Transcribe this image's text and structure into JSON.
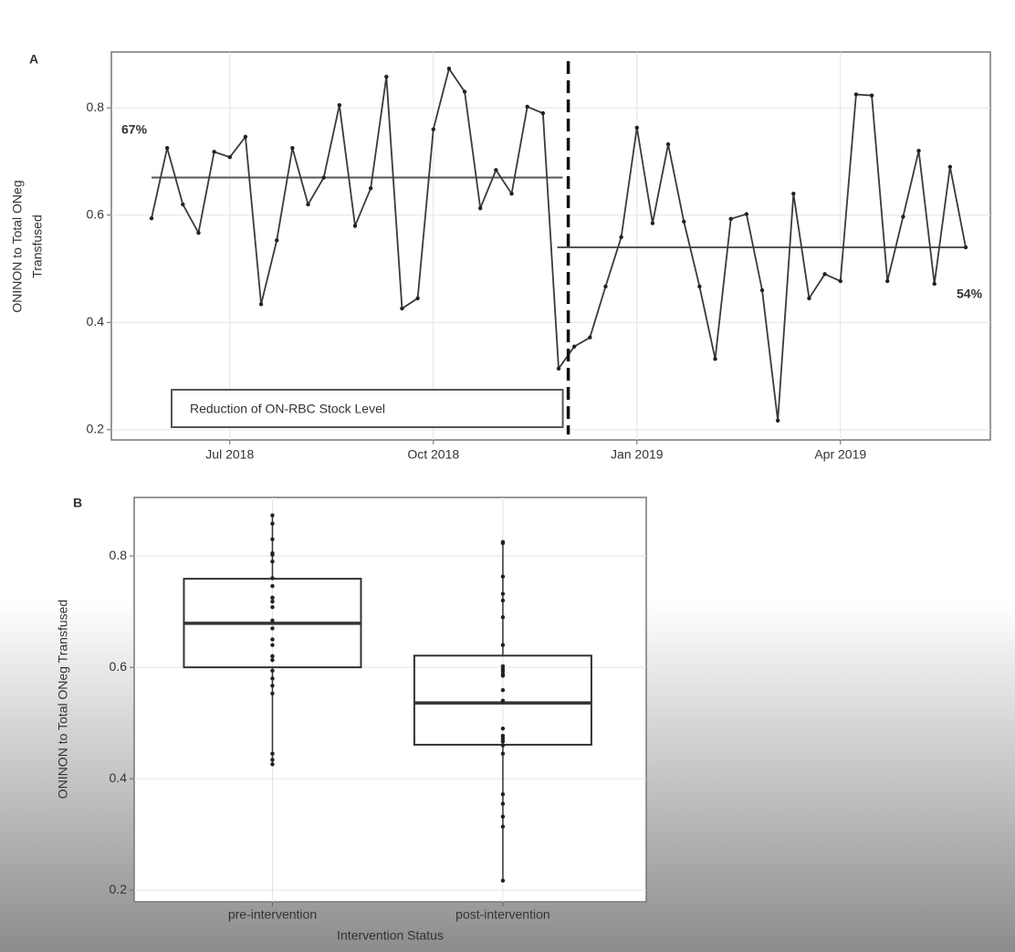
{
  "chart_data": [
    {
      "type": "line",
      "title": "A",
      "ylabel": [
        "ONINON to Total ONeg",
        "Transfused"
      ],
      "x": [
        "2018-05",
        "2018-06",
        "2018-06",
        "2018-06",
        "2018-06",
        "2018-07",
        "2018-07",
        "2018-07",
        "2018-07",
        "2018-07",
        "2018-08",
        "2018-08",
        "2018-08",
        "2018-08",
        "2018-09",
        "2018-09",
        "2018-09",
        "2018-09",
        "2018-10",
        "2018-10",
        "2018-10",
        "2018-10",
        "2018-10",
        "2018-11",
        "2018-11",
        "2018-11",
        "2018-11",
        "2018-12",
        "2018-12",
        "2018-12",
        "2018-12",
        "2019-01",
        "2019-01",
        "2019-01",
        "2019-01",
        "2019-01",
        "2019-02",
        "2019-02",
        "2019-02",
        "2019-02",
        "2019-03",
        "2019-03",
        "2019-03",
        "2019-03",
        "2019-04",
        "2019-04",
        "2019-04",
        "2019-04",
        "2019-04",
        "2019-05",
        "2019-05",
        "2019-05",
        "2019-05"
      ],
      "values": [
        0.594,
        0.725,
        0.62,
        0.567,
        0.718,
        0.708,
        0.746,
        0.434,
        0.553,
        0.725,
        0.62,
        0.67,
        0.805,
        0.58,
        0.65,
        0.858,
        0.426,
        0.445,
        0.76,
        0.873,
        0.83,
        0.613,
        0.684,
        0.64,
        0.802,
        0.79,
        0.314,
        0.355,
        0.372,
        0.467,
        0.559,
        0.763,
        0.585,
        0.732,
        0.588,
        0.467,
        0.332,
        0.593,
        0.602,
        0.46,
        0.217,
        0.64,
        0.445,
        0.49,
        0.477,
        0.825,
        0.823,
        0.477,
        0.597,
        0.72,
        0.472,
        0.69,
        0.54
      ],
      "color": "#3a3a3a",
      "xticks": [
        {
          "value": "2018-07",
          "label": "Jul 2018"
        },
        {
          "value": "2018-10",
          "label": "Oct 2018"
        },
        {
          "value": "2019-01",
          "label": "Jan 2019"
        },
        {
          "value": "2019-04",
          "label": "Apr 2019"
        }
      ],
      "ylim": [
        0.181,
        0.904
      ],
      "yticks": [
        0.2,
        0.4,
        0.6,
        0.8
      ],
      "grid": true,
      "intervention": {
        "x": "2018-12",
        "label": "Reduction of ON-RBC Stock Level"
      },
      "segments": [
        {
          "label": "67%",
          "value": 0.67
        },
        {
          "label": "54%",
          "value": 0.54
        }
      ]
    },
    {
      "type": "box",
      "title": "B",
      "ylabel": "ONINON to Total ONeg Transfused",
      "xlabel": "Intervention Status",
      "categories": [
        "pre-intervention",
        "post-intervention"
      ],
      "boxes": [
        {
          "q1": 0.6,
          "median": 0.679,
          "q3": 0.759,
          "min": 0.426,
          "max": 0.873,
          "points": [
            0.594,
            0.725,
            0.62,
            0.567,
            0.718,
            0.708,
            0.746,
            0.434,
            0.553,
            0.725,
            0.62,
            0.67,
            0.805,
            0.58,
            0.65,
            0.858,
            0.426,
            0.445,
            0.76,
            0.873,
            0.83,
            0.613,
            0.684,
            0.64,
            0.802,
            0.79
          ]
        },
        {
          "q1": 0.461,
          "median": 0.536,
          "q3": 0.621,
          "min": 0.217,
          "max": 0.825,
          "points": [
            0.314,
            0.355,
            0.372,
            0.467,
            0.559,
            0.763,
            0.585,
            0.732,
            0.588,
            0.467,
            0.332,
            0.593,
            0.602,
            0.46,
            0.217,
            0.64,
            0.445,
            0.49,
            0.477,
            0.825,
            0.823,
            0.477,
            0.597,
            0.72,
            0.472,
            0.69,
            0.54
          ]
        }
      ],
      "color": "#333333",
      "ylim": [
        0.179,
        0.905
      ],
      "yticks": [
        0.2,
        0.4,
        0.6,
        0.8
      ],
      "grid": true
    }
  ]
}
